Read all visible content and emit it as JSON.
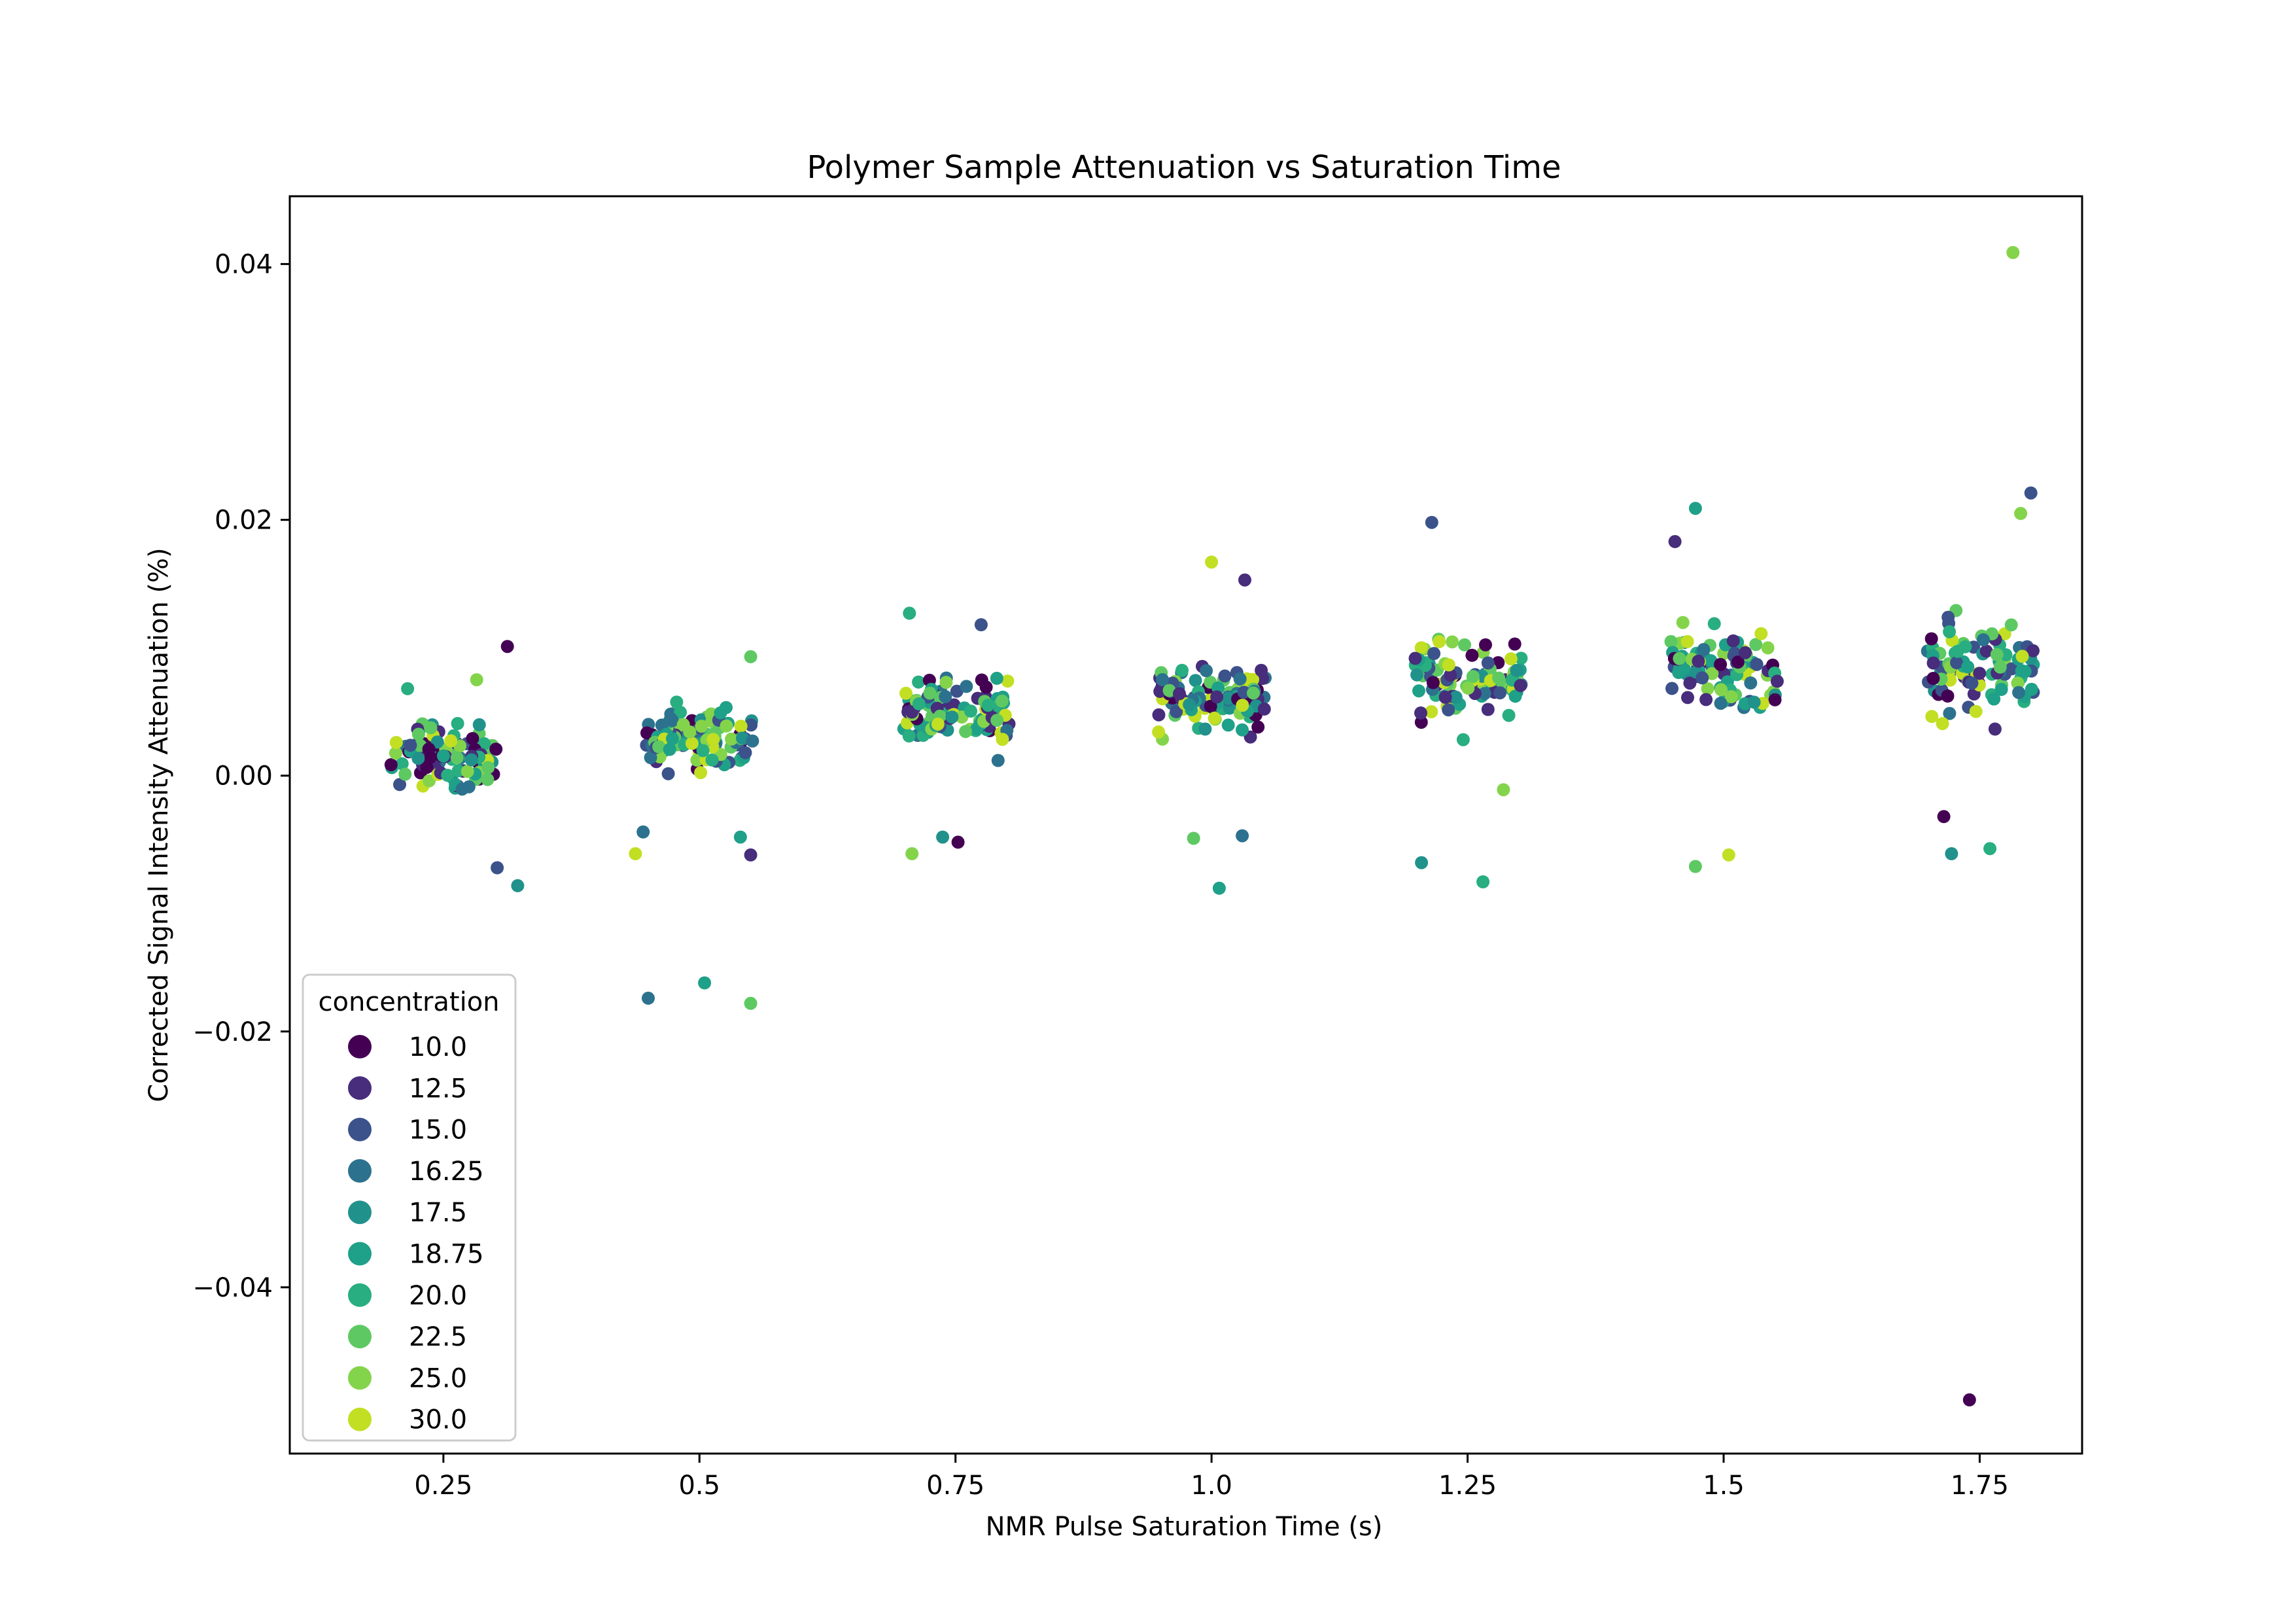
{
  "chart_data": {
    "type": "scatter",
    "title": "Polymer Sample Attenuation vs Saturation Time",
    "xlabel": "NMR Pulse Saturation Time (s)",
    "ylabel": "Corrected Signal Intensity Attenuation (%)",
    "categories": [
      "0.25",
      "0.5",
      "0.75",
      "1.0",
      "1.25",
      "1.5",
      "1.75"
    ],
    "xlim": [
      -0.6,
      6.4
    ],
    "ylim": [
      -0.053,
      0.0453
    ],
    "yticks": [
      0.04,
      0.02,
      0.0,
      -0.02,
      -0.04
    ],
    "ytick_labels": [
      "0.04",
      "0.02",
      "0.00",
      "−0.02",
      "−0.04"
    ],
    "legend": {
      "title": "concentration",
      "placement": "lower-left",
      "entries": [
        {
          "label": "10.0",
          "color": "#440154"
        },
        {
          "label": "12.5",
          "color": "#472d7b"
        },
        {
          "label": "15.0",
          "color": "#3b528b"
        },
        {
          "label": "16.25",
          "color": "#2c728e"
        },
        {
          "label": "17.5",
          "color": "#21918c"
        },
        {
          "label": "18.75",
          "color": "#1fa088"
        },
        {
          "label": "20.0",
          "color": "#28ae80"
        },
        {
          "label": "22.5",
          "color": "#5ec962"
        },
        {
          "label": "25.0",
          "color": "#84d44b"
        },
        {
          "label": "30.0",
          "color": "#c2df23"
        }
      ]
    },
    "series": [
      {
        "x": "0.25",
        "center": 0.0012,
        "spread": 0.0028,
        "outliers": [
          [
            0.25,
            0.0101
          ],
          [
            0.21,
            -0.0072
          ],
          [
            0.29,
            -0.0086
          ],
          [
            -0.14,
            0.0068
          ],
          [
            0.13,
            0.0075
          ]
        ]
      },
      {
        "x": "0.5",
        "center": 0.0032,
        "spread": 0.0028,
        "outliers": [
          [
            -0.2,
            -0.0174
          ],
          [
            0.02,
            -0.0162
          ],
          [
            0.2,
            -0.0178
          ],
          [
            -0.25,
            -0.0061
          ],
          [
            0.2,
            -0.0062
          ],
          [
            -0.22,
            -0.0044
          ],
          [
            0.16,
            -0.0048
          ],
          [
            0.2,
            0.0093
          ]
        ]
      },
      {
        "x": "0.75",
        "center": 0.005,
        "spread": 0.0027,
        "outliers": [
          [
            -0.18,
            0.0127
          ],
          [
            -0.17,
            -0.0061
          ],
          [
            0.01,
            -0.0052
          ],
          [
            0.1,
            0.0118
          ],
          [
            -0.05,
            -0.0048
          ]
        ]
      },
      {
        "x": "1.0",
        "center": 0.0063,
        "spread": 0.003,
        "outliers": [
          [
            0.0,
            0.0167
          ],
          [
            0.13,
            0.0153
          ],
          [
            0.12,
            -0.0047
          ],
          [
            0.03,
            -0.0088
          ],
          [
            -0.07,
            -0.0049
          ]
        ]
      },
      {
        "x": "1.25",
        "center": 0.0075,
        "spread": 0.0032,
        "outliers": [
          [
            -0.14,
            0.0198
          ],
          [
            -0.18,
            -0.0068
          ],
          [
            0.06,
            -0.0083
          ],
          [
            0.14,
            -0.0011
          ]
        ]
      },
      {
        "x": "1.5",
        "center": 0.0082,
        "spread": 0.0033,
        "outliers": [
          [
            -0.11,
            0.0209
          ],
          [
            -0.11,
            -0.0071
          ],
          [
            0.02,
            -0.0062
          ],
          [
            -0.19,
            0.0183
          ]
        ]
      },
      {
        "x": "1.75",
        "center": 0.0085,
        "spread": 0.0034,
        "outliers": [
          [
            0.13,
            0.0409
          ],
          [
            -0.04,
            -0.0488
          ],
          [
            0.2,
            0.0221
          ],
          [
            -0.11,
            -0.0061
          ],
          [
            0.04,
            -0.0057
          ],
          [
            0.16,
            0.0205
          ],
          [
            -0.14,
            -0.0032
          ]
        ]
      }
    ]
  }
}
